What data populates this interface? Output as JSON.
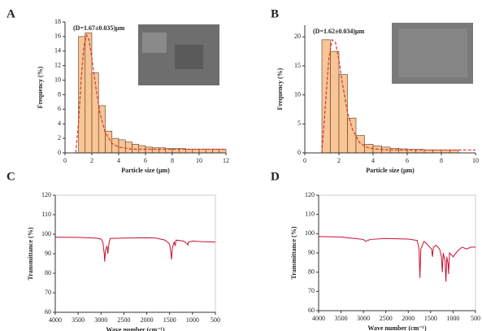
{
  "chart_data": [
    {
      "type": "histogram",
      "panel": "A",
      "annotation": "(D=1.67±0.035)μm",
      "x_label": "Particle size (μm)",
      "y_label": "Frequency (%)",
      "bins": [
        1,
        1.5,
        2,
        2.5,
        3,
        3.5,
        4,
        4.5,
        5,
        5.5,
        6,
        6.5,
        7,
        7.5,
        8,
        8.5,
        9,
        9.5,
        10,
        10.5,
        11,
        11.5,
        12
      ],
      "values": [
        16,
        16.5,
        11,
        6.5,
        3,
        2,
        1.8,
        1.5,
        1.2,
        1,
        0.8,
        0.7,
        0.7,
        0.6,
        0.6,
        0.6,
        0.5,
        0.5,
        0.5,
        0.5,
        0.5,
        0.5
      ],
      "color": "#f7c596",
      "fit": {
        "x": [
          0.8,
          1,
          1.2,
          1.4,
          1.6,
          1.8,
          2,
          2.3,
          2.6,
          3,
          3.5,
          4,
          5,
          6,
          8,
          12
        ],
        "values": [
          0,
          4,
          10,
          14.5,
          16.2,
          15.5,
          13,
          9,
          5.5,
          2.8,
          1.3,
          0.8,
          0.5,
          0.5,
          0.5,
          0.5
        ],
        "color": "#d9362b"
      },
      "xlim": [
        0,
        12
      ],
      "xticks": [
        0,
        2,
        4,
        6,
        8,
        10,
        12
      ],
      "ylim": [
        0,
        18
      ],
      "yticks": [
        0,
        2,
        4,
        6,
        8,
        10,
        12,
        14,
        16,
        18
      ]
    },
    {
      "type": "histogram",
      "panel": "B",
      "annotation": "(D=1.62±0.034)μm",
      "x_label": "Particle size (μm)",
      "y_label": "Frequency (%)",
      "bins": [
        1,
        1.5,
        2,
        2.5,
        3,
        3.5,
        4,
        4.5,
        5,
        5.5,
        6,
        6.5,
        7,
        7.5,
        8,
        8.5,
        9
      ],
      "values": [
        19.5,
        17.5,
        13.5,
        6,
        3,
        1.5,
        1.2,
        1,
        0.8,
        0.7,
        0.6,
        0.6,
        0.5,
        0.5,
        0.5,
        0.5
      ],
      "color": "#f7c596",
      "fit": {
        "x": [
          1,
          1.2,
          1.4,
          1.6,
          1.8,
          2,
          2.2,
          2.5,
          2.8,
          3.2,
          3.6,
          4,
          5,
          6,
          8,
          10
        ],
        "values": [
          0,
          8,
          16,
          19.5,
          19,
          16,
          12,
          7,
          4,
          1.8,
          1,
          0.7,
          0.5,
          0.5,
          0.5,
          0.5
        ],
        "color": "#d9362b"
      },
      "xlim": [
        0,
        10
      ],
      "xticks": [
        0,
        2,
        4,
        6,
        8,
        10
      ],
      "ylim": [
        0,
        22
      ],
      "yticks": [
        0,
        5,
        10,
        15,
        20
      ]
    },
    {
      "type": "line",
      "panel": "C",
      "x_label": "Wave number (cm⁻¹)",
      "y_label": "Transmittance (%)",
      "x": [
        4000,
        3500,
        3100,
        3000,
        2960,
        2930,
        2920,
        2900,
        2870,
        2850,
        2830,
        2800,
        2500,
        2000,
        1800,
        1700,
        1600,
        1500,
        1470,
        1460,
        1440,
        1400,
        1380,
        1360,
        1200,
        1110,
        1100,
        1090,
        1000,
        800,
        500
      ],
      "values": [
        98.5,
        98.4,
        98,
        97.5,
        96,
        90,
        86,
        92,
        94,
        90,
        95,
        97.8,
        98,
        98.2,
        98,
        97.5,
        97,
        95,
        90,
        87,
        93,
        96,
        94,
        97,
        96.5,
        95,
        94.5,
        96,
        96.5,
        96.2,
        96
      ],
      "color": "#c8102e",
      "xlim": [
        4000,
        500
      ],
      "xticks": [
        4000,
        3500,
        3000,
        2500,
        2000,
        1500,
        1000,
        500
      ],
      "ylim": [
        60,
        120
      ],
      "yticks": [
        60,
        70,
        80,
        90,
        100,
        110,
        120
      ]
    },
    {
      "type": "line",
      "panel": "D",
      "x_label": "Wave number (cm⁻¹)",
      "y_label": "Transmittance (%)",
      "x": [
        4000,
        3500,
        3200,
        3000,
        2950,
        2850,
        2500,
        2000,
        1800,
        1760,
        1740,
        1720,
        1650,
        1600,
        1480,
        1460,
        1440,
        1380,
        1300,
        1260,
        1240,
        1220,
        1180,
        1160,
        1140,
        1110,
        1100,
        1080,
        1000,
        900,
        800,
        700,
        600,
        500
      ],
      "values": [
        98.5,
        98.3,
        97.5,
        97,
        96,
        97,
        97.5,
        97.2,
        96.5,
        92,
        77,
        92,
        96,
        95,
        92,
        88,
        93,
        94,
        92,
        88,
        80,
        90,
        86,
        75,
        88,
        84,
        79,
        90,
        88,
        91,
        93,
        92,
        93,
        93
      ],
      "color": "#c8102e",
      "xlim": [
        4000,
        500
      ],
      "xticks": [
        4000,
        3500,
        3000,
        2500,
        2000,
        1500,
        1000,
        500
      ],
      "ylim": [
        60,
        120
      ],
      "yticks": [
        60,
        70,
        80,
        90,
        100,
        110,
        120
      ]
    }
  ]
}
